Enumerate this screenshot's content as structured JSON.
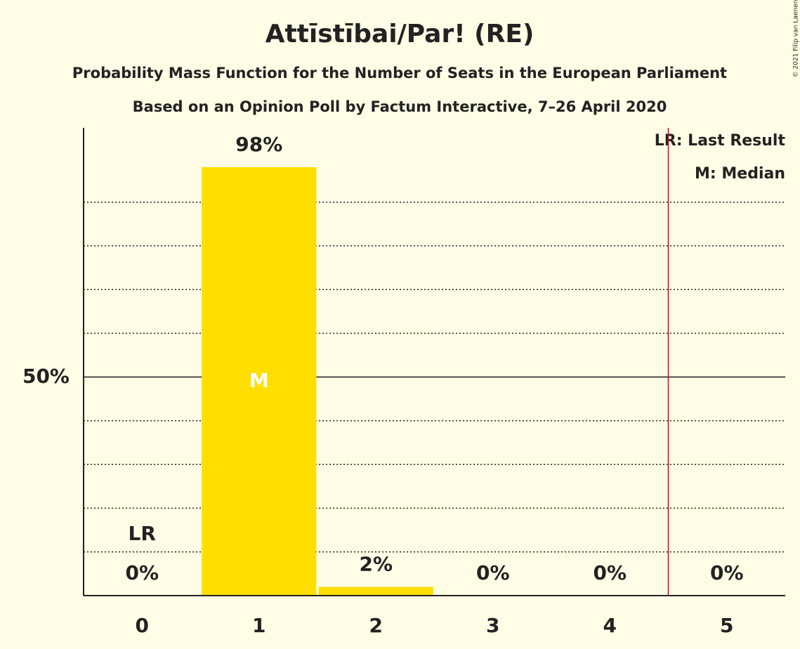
{
  "chart_data": {
    "type": "bar",
    "title": "Attīstībai/Par! (RE)",
    "subtitle": "Probability Mass Function for the Number of Seats in the European Parliament",
    "subtitle2": "Based on an Opinion Poll by Factum Interactive, 7–26 April 2020",
    "copyright": "© 2021 Filip van Laenen",
    "categories": [
      "0",
      "1",
      "2",
      "3",
      "4",
      "5"
    ],
    "values": [
      0,
      98,
      2,
      0,
      0,
      0
    ],
    "value_labels": [
      "0%",
      "98%",
      "2%",
      "0%",
      "0%",
      "0%"
    ],
    "color": "#ffde00",
    "ylim": [
      0,
      107
    ],
    "yticks": [
      {
        "value": 50,
        "label": "50%"
      }
    ],
    "minor_grid": [
      10,
      20,
      30,
      40,
      60,
      70,
      80,
      90
    ],
    "last_result": {
      "category": 0,
      "label": "LR"
    },
    "median": {
      "category": 1,
      "label": "M"
    },
    "red_line_x": 4.5,
    "legend": [
      "LR: Last Result",
      "M: Median"
    ]
  }
}
